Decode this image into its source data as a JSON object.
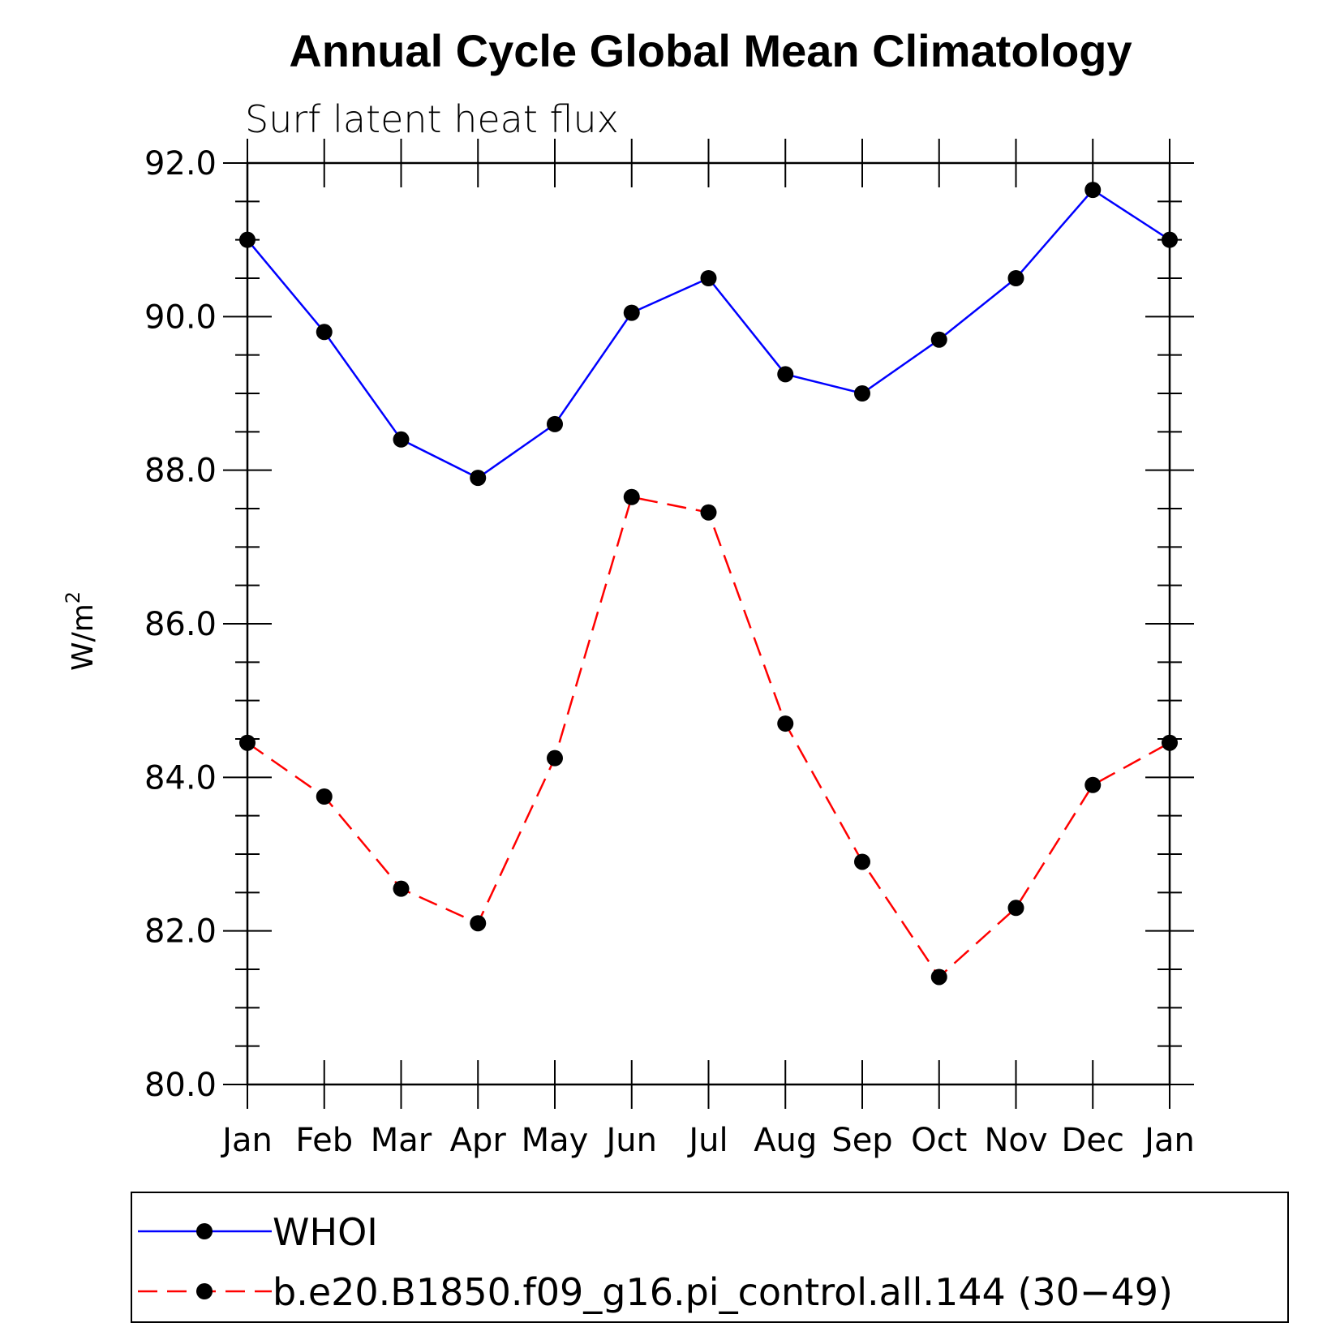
{
  "chart_data": {
    "type": "line",
    "title": "Annual Cycle Global Mean Climatology",
    "subtitle": "Surf latent heat flux",
    "ylabel": "W/m",
    "ylabel_superscript": "2",
    "xlabel": "",
    "categories": [
      "Jan",
      "Feb",
      "Mar",
      "Apr",
      "May",
      "Jun",
      "Jul",
      "Aug",
      "Sep",
      "Oct",
      "Nov",
      "Dec",
      "Jan"
    ],
    "ylim": [
      80.0,
      92.0
    ],
    "yticks": [
      "80.0",
      "82.0",
      "84.0",
      "86.0",
      "88.0",
      "90.0",
      "92.0"
    ],
    "grid": false,
    "legend_position": "bottom",
    "series": [
      {
        "name": "WHOI",
        "color": "#0000ff",
        "dash": "solid",
        "values": [
          91.0,
          89.8,
          88.4,
          87.9,
          88.6,
          90.05,
          90.5,
          89.25,
          89.0,
          89.7,
          90.5,
          91.65,
          91.0
        ]
      },
      {
        "name": "b.e20.B1850.f09_g16.pi_control.all.144 (30−49)",
        "color": "#ff0000",
        "dash": "dashed",
        "values": [
          84.45,
          83.75,
          82.55,
          82.1,
          84.25,
          87.65,
          87.45,
          84.7,
          82.9,
          81.4,
          82.3,
          83.9,
          84.45
        ]
      }
    ]
  }
}
